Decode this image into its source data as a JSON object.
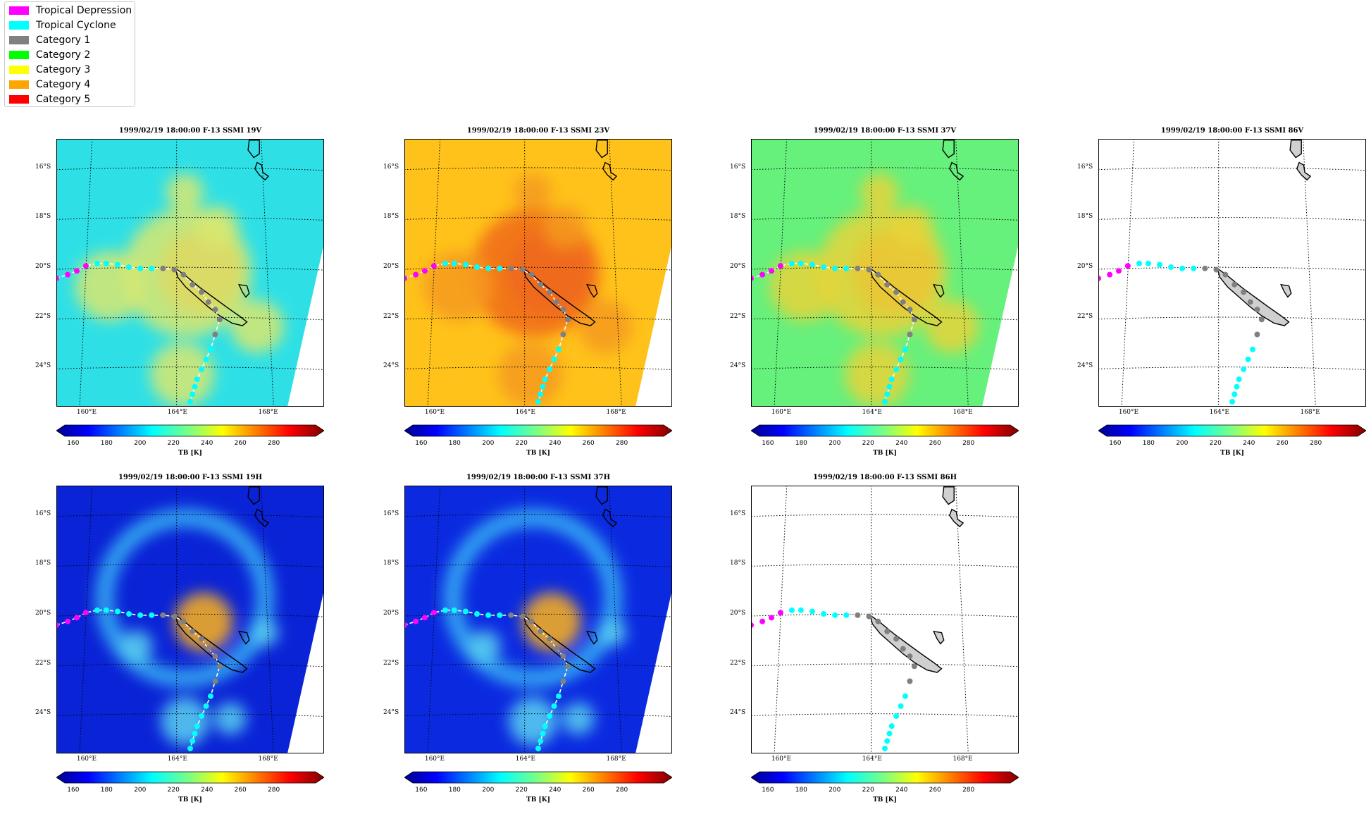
{
  "legend": {
    "items": [
      {
        "label": "Tropical Depression",
        "color": "#ff00ff"
      },
      {
        "label": "Tropical Cyclone",
        "color": "#00ffff"
      },
      {
        "label": "Category 1",
        "color": "#808080"
      },
      {
        "label": "Category 2",
        "color": "#00ff00"
      },
      {
        "label": "Category 3",
        "color": "#ffff00"
      },
      {
        "label": "Category 4",
        "color": "#ffa500"
      },
      {
        "label": "Category 5",
        "color": "#ff0000"
      }
    ]
  },
  "map": {
    "lat_labels": [
      "16°S",
      "18°S",
      "20°S",
      "22°S",
      "24°S"
    ],
    "lon_labels": [
      "160°E",
      "164°E",
      "168°E"
    ]
  },
  "colorbar": {
    "ticks": [
      "160",
      "180",
      "200",
      "220",
      "240",
      "260",
      "280"
    ],
    "label": "TB [K]"
  },
  "panels": [
    {
      "title": "1999/02/19 18:00:00  F-13 SSMI 19V",
      "has_data": true,
      "bg": "#2ee0e6"
    },
    {
      "title": "1999/02/19 18:00:00  F-13 SSMI 23V",
      "has_data": true,
      "bg": "#ffc21a"
    },
    {
      "title": "1999/02/19 18:00:00  F-13 SSMI 37V",
      "has_data": true,
      "bg": "#66f07c"
    },
    {
      "title": "1999/02/19 18:00:00  F-13 SSMI 86V",
      "has_data": false,
      "bg": "#ffffff"
    },
    {
      "title": "1999/02/19 18:00:00  F-13 SSMI 19H",
      "has_data": true,
      "bg": "#0a23d6"
    },
    {
      "title": "1999/02/19 18:00:00  F-13 SSMI 37H",
      "has_data": true,
      "bg": "#0b2ae0"
    },
    {
      "title": "1999/02/19 18:00:00  F-13 SSMI 86H",
      "has_data": false,
      "bg": "#ffffff"
    }
  ],
  "track": [
    {
      "lon": 158.7,
      "lat": -20.45,
      "cat": "td"
    },
    {
      "lon": 159.2,
      "lat": -20.3,
      "cat": "td"
    },
    {
      "lon": 159.6,
      "lat": -20.15,
      "cat": "td"
    },
    {
      "lon": 160.0,
      "lat": -19.95,
      "cat": "td"
    },
    {
      "lon": 160.5,
      "lat": -19.85,
      "cat": "tc"
    },
    {
      "lon": 160.9,
      "lat": -19.85,
      "cat": "tc"
    },
    {
      "lon": 161.4,
      "lat": -19.9,
      "cat": "tc"
    },
    {
      "lon": 161.9,
      "lat": -20.0,
      "cat": "tc"
    },
    {
      "lon": 162.4,
      "lat": -20.05,
      "cat": "tc"
    },
    {
      "lon": 162.9,
      "lat": -20.05,
      "cat": "tc"
    },
    {
      "lon": 163.4,
      "lat": -20.05,
      "cat": "c1"
    },
    {
      "lon": 163.9,
      "lat": -20.1,
      "cat": "c1"
    },
    {
      "lon": 164.3,
      "lat": -20.3,
      "cat": "c1"
    },
    {
      "lon": 164.7,
      "lat": -20.7,
      "cat": "c1"
    },
    {
      "lon": 165.1,
      "lat": -21.0,
      "cat": "c1"
    },
    {
      "lon": 165.4,
      "lat": -21.4,
      "cat": "c1"
    },
    {
      "lon": 165.7,
      "lat": -21.7,
      "cat": "c1"
    },
    {
      "lon": 165.9,
      "lat": -22.1,
      "cat": "c1"
    },
    {
      "lon": 165.7,
      "lat": -22.7,
      "cat": "c1"
    },
    {
      "lon": 165.5,
      "lat": -23.3,
      "cat": "tc"
    },
    {
      "lon": 165.3,
      "lat": -23.7,
      "cat": "tc"
    },
    {
      "lon": 165.1,
      "lat": -24.1,
      "cat": "tc"
    },
    {
      "lon": 164.9,
      "lat": -24.5,
      "cat": "tc"
    },
    {
      "lon": 164.8,
      "lat": -24.8,
      "cat": "tc"
    },
    {
      "lon": 164.7,
      "lat": -25.1,
      "cat": "tc"
    },
    {
      "lon": 164.6,
      "lat": -25.4,
      "cat": "tc"
    }
  ]
}
